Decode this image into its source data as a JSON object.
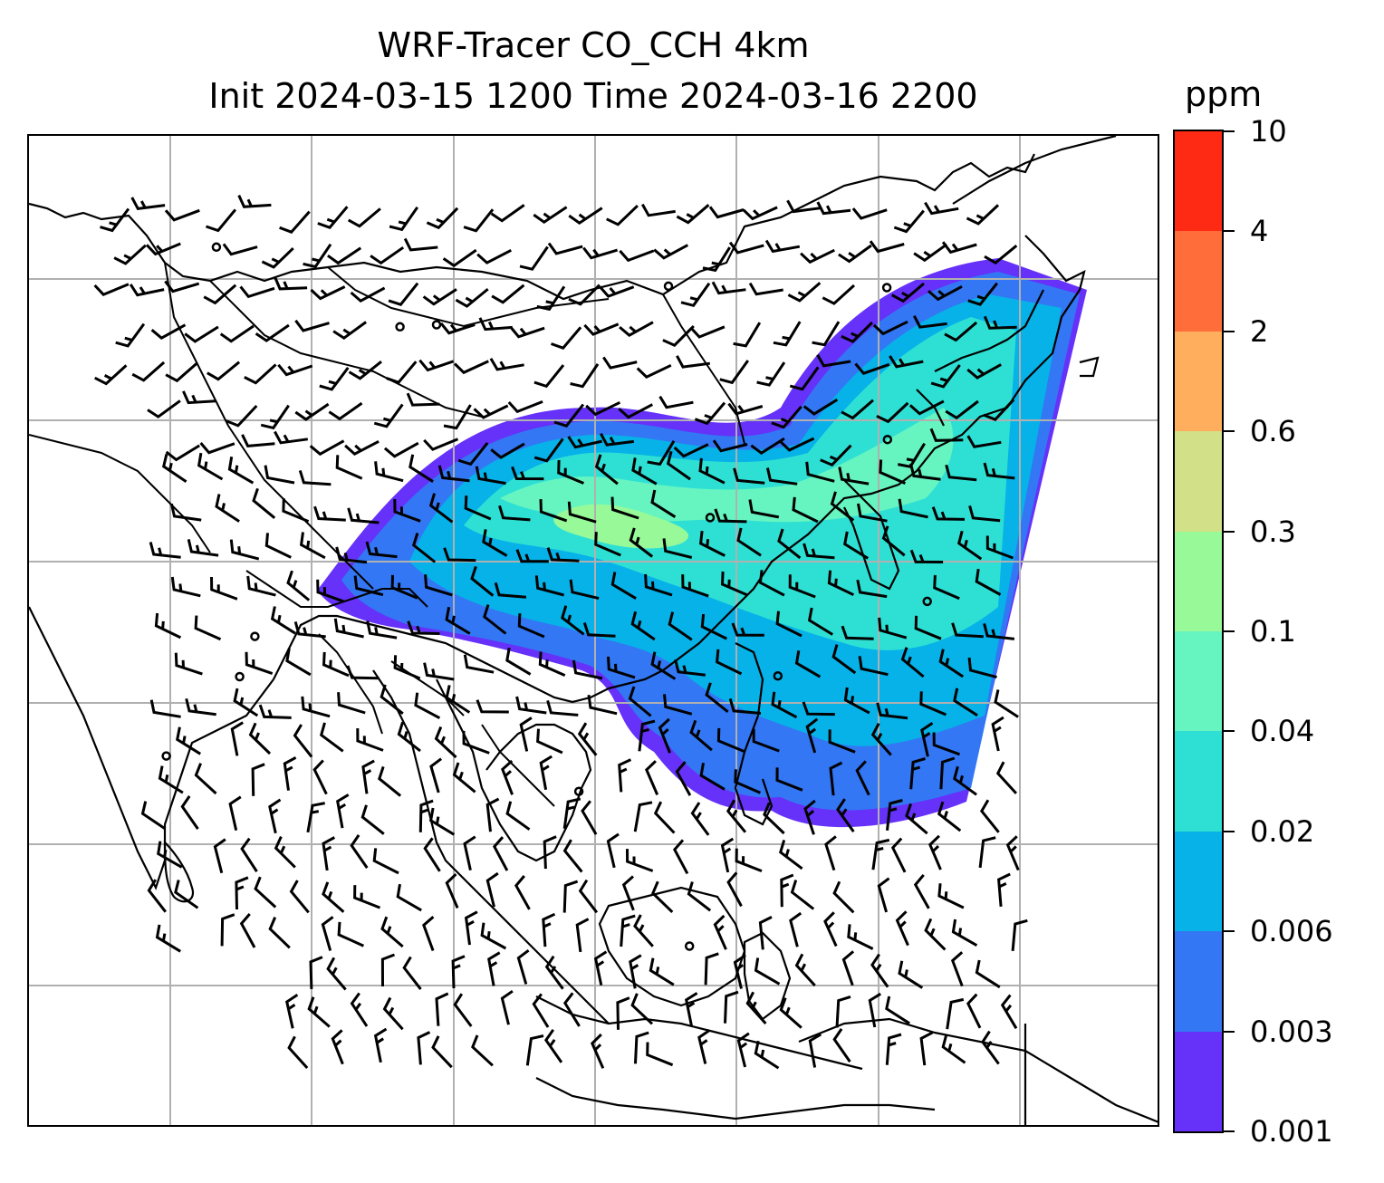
{
  "title": {
    "line1": "WRF-Tracer CO_CCH 4km",
    "line2": "Init 2024-03-15 1200 Time 2024-03-16 2200"
  },
  "map": {
    "gridlines": "on",
    "grid_color": "#b0b0b0",
    "coastline_color": "#000000",
    "features": [
      "coastlines",
      "country-borders",
      "tracer-concentration-contours",
      "wind-barbs"
    ]
  },
  "colorbar": {
    "unit": "ppm",
    "ticks": [
      "10",
      "4",
      "2",
      "0.6",
      "0.3",
      "0.1",
      "0.04",
      "0.02",
      "0.006",
      "0.003",
      "0.001"
    ],
    "colors_top_to_bottom": [
      "#ff2a14",
      "#ff6e3a",
      "#ffae5e",
      "#d2e187",
      "#98f998",
      "#66f5c1",
      "#2ee0d4",
      "#06b2e8",
      "#3377f4",
      "#6631f9"
    ]
  }
}
